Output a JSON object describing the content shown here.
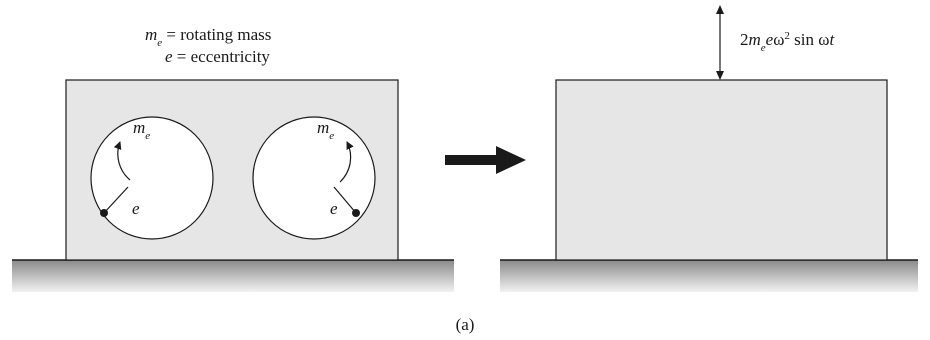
{
  "legend": {
    "mass_symbol": "m",
    "mass_subscript": "e",
    "mass_def": " = rotating mass",
    "ecc_symbol": "e",
    "ecc_def": " = eccentricity"
  },
  "left_block": {
    "rotor_left": {
      "mass_symbol": "m",
      "mass_subscript": "e",
      "ecc_symbol": "e"
    },
    "rotor_right": {
      "mass_symbol": "m",
      "mass_subscript": "e",
      "ecc_symbol": "e"
    }
  },
  "right_block": {
    "force": {
      "coef": "2",
      "m": "m",
      "sub": "e",
      "e": "e",
      "omega": "ω",
      "power": "2",
      "sin": " sin ",
      "omega2": "ω",
      "t": "t"
    }
  },
  "caption": "(a)",
  "colors": {
    "block_fill": "#e6e6e6",
    "outline": "#1a1a1a",
    "arrow": "#1a1a1a",
    "ground_top": "#8a8a8a",
    "ground_bottom": "#f2f2f2"
  }
}
